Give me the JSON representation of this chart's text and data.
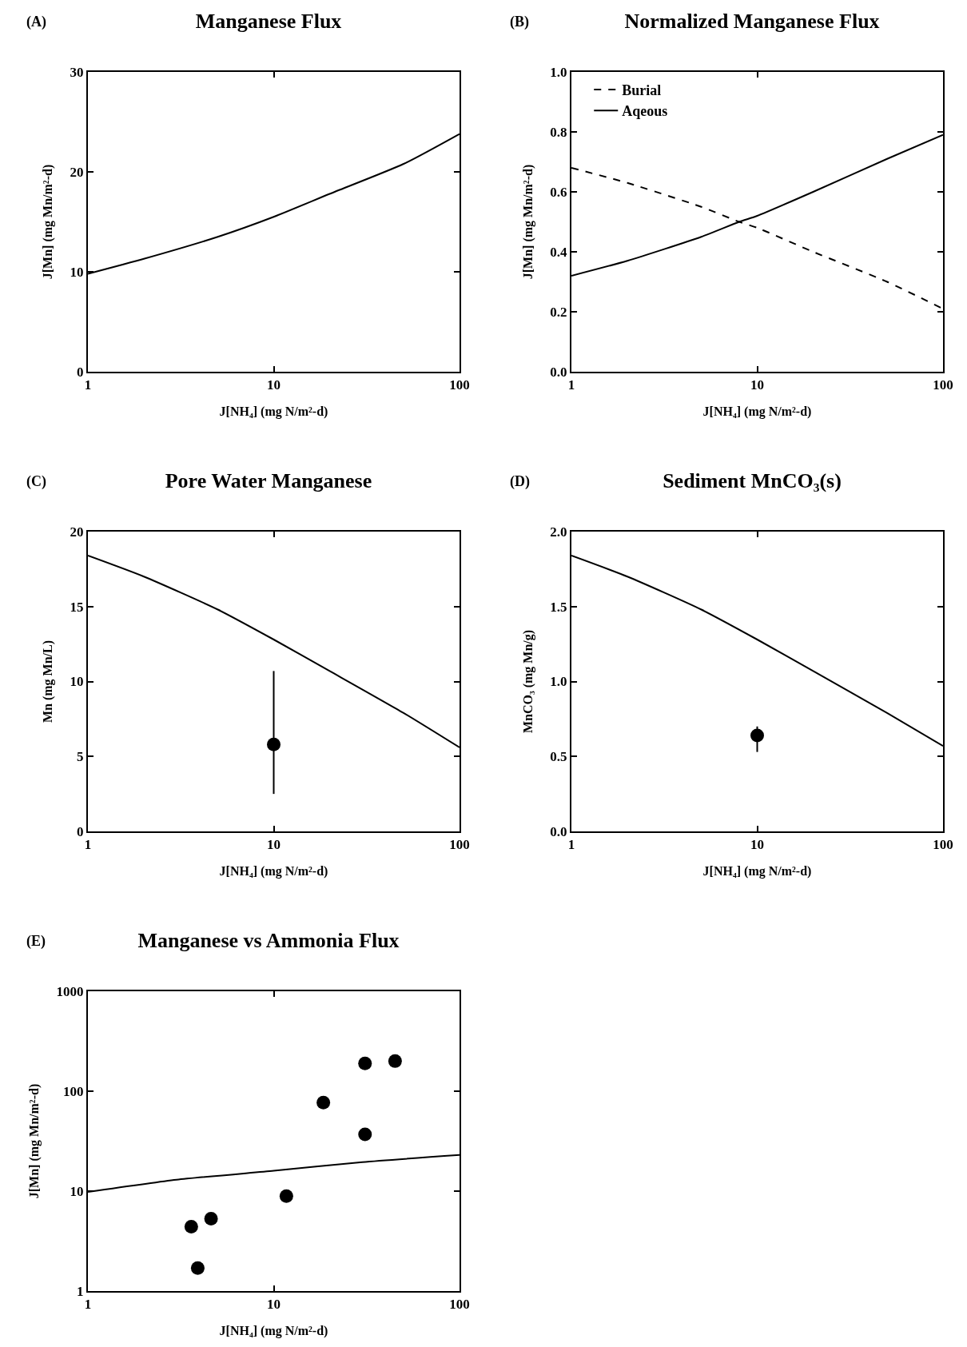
{
  "chart_data": [
    {
      "type": "line",
      "title": "Manganese Flux",
      "annotations": [
        "(A)"
      ],
      "xlabel": "J[NH₄] (mg N/m²-d)",
      "ylabel": "J[Mn] (mg Mn/m²-d)",
      "log": "x",
      "xlim": [
        1,
        100
      ],
      "xticks": [
        1,
        10,
        100
      ],
      "ylim": [
        0,
        30
      ],
      "yticks": [
        0,
        10,
        20,
        30
      ],
      "grid": false,
      "legend": false,
      "series": [
        {
          "color": "#000000",
          "x": [
            1,
            2,
            5,
            10,
            20,
            50,
            100
          ],
          "values": [
            9.8,
            11.3,
            13.5,
            15.5,
            17.8,
            20.8,
            23.8
          ]
        }
      ]
    },
    {
      "type": "line",
      "title": "Normalized Manganese Flux",
      "annotations": [
        "(B)"
      ],
      "xlabel": "J[NH₄] (mg N/m²-d)",
      "ylabel": "J[Mn] (mg Mn/m²-d)",
      "log": "x",
      "xlim": [
        1,
        100
      ],
      "xticks": [
        1,
        10,
        100
      ],
      "ylim": [
        0,
        1
      ],
      "yticks": [
        {
          "value": 0,
          "label": "0.0"
        },
        0.2,
        0.4,
        0.6,
        0.8,
        {
          "value": 1,
          "label": "1.0"
        }
      ],
      "grid": false,
      "legend": "top left",
      "series": [
        {
          "name": "Burial",
          "color": "#000000",
          "line_style": "dashed",
          "x": [
            1,
            2,
            5,
            8,
            10,
            20,
            50,
            100
          ],
          "values": [
            0.68,
            0.63,
            0.55,
            0.5,
            0.48,
            0.4,
            0.3,
            0.21
          ]
        },
        {
          "name": "Aqeous",
          "color": "#000000",
          "line_style": "solid",
          "x": [
            1,
            2,
            5,
            8,
            10,
            20,
            50,
            100
          ],
          "values": [
            0.32,
            0.37,
            0.45,
            0.5,
            0.52,
            0.6,
            0.71,
            0.79
          ]
        }
      ]
    },
    {
      "type": "line",
      "title": "Pore Water Manganese",
      "annotations": [
        "(C)"
      ],
      "xlabel": "J[NH₄] (mg N/m²-d)",
      "ylabel": "Mn (mg Mn/L)",
      "log": "x",
      "xlim": [
        1,
        100
      ],
      "xticks": [
        1,
        10,
        100
      ],
      "ylim": [
        0,
        20
      ],
      "yticks": [
        0,
        5,
        10,
        15,
        20
      ],
      "grid": false,
      "legend": false,
      "series": [
        {
          "color": "#000000",
          "x": [
            1,
            2,
            5,
            10,
            20,
            50,
            100
          ],
          "values": [
            18.4,
            17.0,
            14.8,
            12.8,
            10.7,
            7.9,
            5.6
          ]
        },
        {
          "type": "scatter",
          "marker": "circle",
          "color": "#000000",
          "x": [
            10
          ],
          "values": [
            5.8
          ],
          "errors": [
            [
              2.5,
              10.7
            ]
          ]
        }
      ]
    },
    {
      "type": "line",
      "title": "Sediment MnCO₃(s)",
      "annotations": [
        "(D)"
      ],
      "xlabel": "J[NH₄] (mg N/m²-d)",
      "ylabel": "MnCO₃ (mg Mn/g)",
      "log": "x",
      "xlim": [
        1,
        100
      ],
      "xticks": [
        1,
        10,
        100
      ],
      "ylim": [
        0,
        2
      ],
      "yticks": [
        {
          "value": 0,
          "label": "0.0"
        },
        0.5,
        {
          "value": 1,
          "label": "1.0"
        },
        1.5,
        {
          "value": 2,
          "label": "2.0"
        }
      ],
      "grid": false,
      "legend": false,
      "series": [
        {
          "color": "#000000",
          "x": [
            1,
            2,
            5,
            10,
            20,
            50,
            100
          ],
          "values": [
            1.84,
            1.7,
            1.48,
            1.28,
            1.07,
            0.79,
            0.57
          ]
        },
        {
          "type": "scatter",
          "marker": "circle",
          "color": "#000000",
          "x": [
            10
          ],
          "values": [
            0.64
          ],
          "errors": [
            [
              0.53,
              0.7
            ]
          ]
        }
      ]
    },
    {
      "type": "line",
      "title": "Manganese vs Ammonia Flux",
      "annotations": [
        "(E)"
      ],
      "xlabel": "J[NH₄] (mg N/m²-d)",
      "ylabel": "J[Mn] (mg Mn/m²-d)",
      "log": "xy",
      "xlim": [
        1,
        100
      ],
      "xticks": [
        1,
        10,
        100
      ],
      "ylim": [
        1,
        1000
      ],
      "yticks": [
        1,
        10,
        100,
        1000
      ],
      "grid": false,
      "legend": false,
      "series": [
        {
          "color": "#000000",
          "x": [
            1,
            3,
            10,
            30,
            100
          ],
          "values": [
            9.8,
            13,
            16,
            19.5,
            23
          ]
        },
        {
          "type": "scatter",
          "marker": "circle",
          "color": "#000000",
          "x": [
            3.6,
            4.6,
            3.9,
            11.7,
            18.5,
            31,
            45,
            31
          ],
          "values": [
            4.4,
            5.3,
            1.7,
            8.9,
            77,
            190,
            200,
            37
          ]
        }
      ]
    }
  ]
}
